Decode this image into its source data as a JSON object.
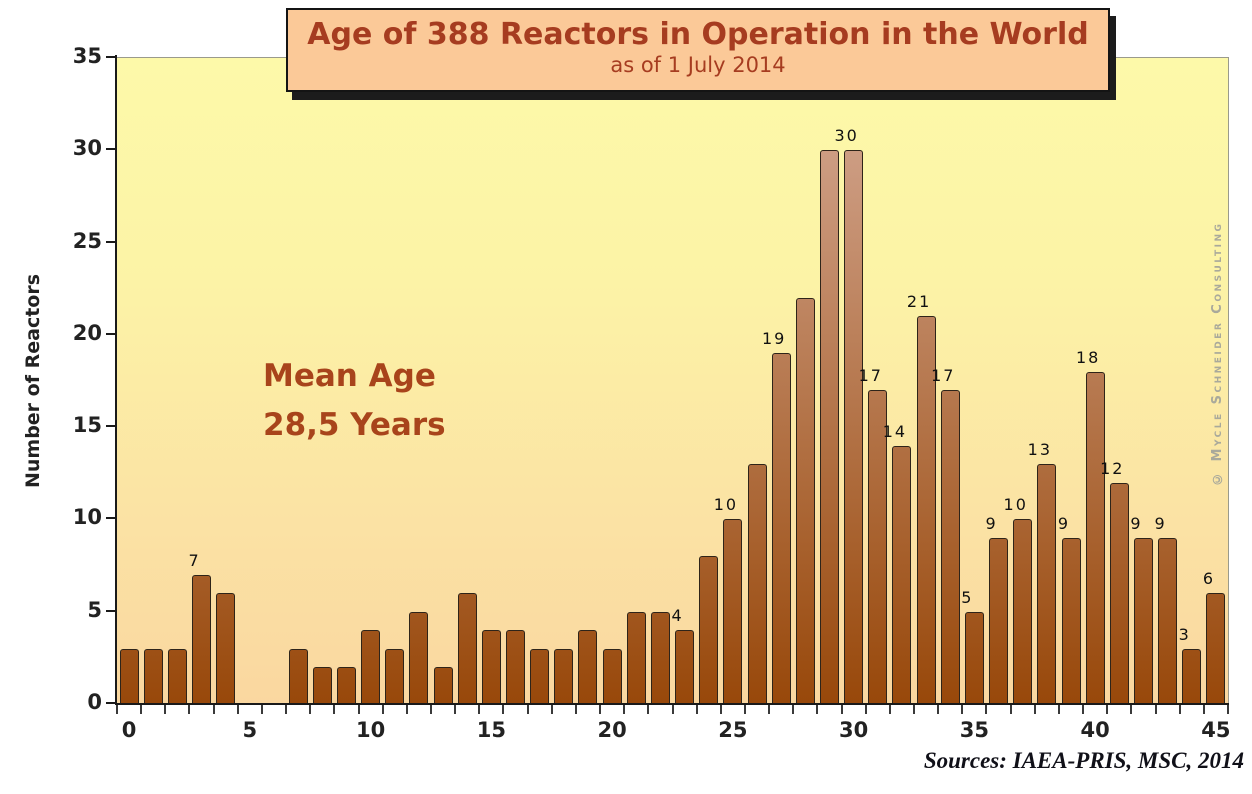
{
  "title_box": {
    "title": "Age of 388 Reactors in Operation in the World",
    "subtitle": "as of 1 July 2014",
    "text_color": "#a63c20",
    "bg_color": "#fbc998",
    "border_color": "#141414"
  },
  "annotation": {
    "line1": "Mean Age",
    "line2": "28,5 Years",
    "color": "#a8441b"
  },
  "watermark": "© Mycle Schneider Consulting",
  "sources": "Sources: IAEA-PRIS, MSC, 2014",
  "chart_data": {
    "type": "bar",
    "title": "Age of 388 Reactors in Operation in the World",
    "subtitle": "as of 1 July 2014",
    "xlabel": "",
    "ylabel": "Number of Reactors",
    "x": [
      0,
      1,
      2,
      3,
      4,
      5,
      6,
      7,
      8,
      9,
      10,
      11,
      12,
      13,
      14,
      15,
      16,
      17,
      18,
      19,
      20,
      21,
      22,
      23,
      24,
      25,
      26,
      27,
      28,
      29,
      30,
      31,
      32,
      33,
      34,
      35,
      36,
      37,
      38,
      39,
      40,
      41,
      42,
      43,
      44,
      45
    ],
    "values": [
      3,
      3,
      3,
      7,
      6,
      0,
      0,
      3,
      2,
      2,
      4,
      3,
      5,
      2,
      6,
      4,
      4,
      3,
      3,
      4,
      3,
      5,
      5,
      4,
      8,
      10,
      13,
      19,
      22,
      30,
      30,
      17,
      14,
      21,
      17,
      5,
      9,
      10,
      13,
      9,
      18,
      12,
      9,
      9,
      3,
      6
    ],
    "total_reactors": 388,
    "bar_labels": {
      "3": "7",
      "23": "4",
      "25": "10",
      "27": "19",
      "30": "30",
      "31": "17",
      "32": "14",
      "33": "21",
      "34": "17",
      "35": "5",
      "36": "9",
      "37": "10",
      "38": "13",
      "39": "9",
      "40": "18",
      "41": "12",
      "42": "9",
      "43": "9",
      "44": "3",
      "45": "6"
    },
    "xticks": [
      0,
      5,
      10,
      15,
      20,
      25,
      30,
      35,
      40,
      45
    ],
    "yticks": [
      0,
      5,
      10,
      15,
      20,
      25,
      30,
      35
    ],
    "xlim": [
      -0.5,
      45.5
    ],
    "ylim": [
      0,
      35
    ],
    "grid": false,
    "legend": null,
    "colors": {
      "plot_bg_top": "#fdf9a9",
      "plot_bg_bottom": "#fad7a0",
      "bar_gradient_top": "#d6ab97",
      "bar_gradient_bottom": "#98480a",
      "bar_border": "#2e2419",
      "axis": "#1a1a1a",
      "tick_label": "#222222",
      "bar_value_label": "#111111"
    }
  }
}
